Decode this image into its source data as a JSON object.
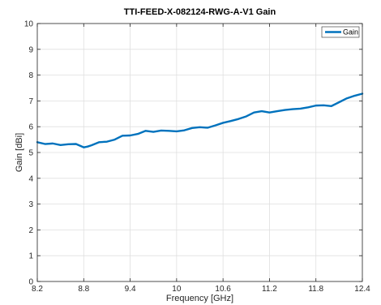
{
  "chart_data": {
    "type": "line",
    "title": "TTI-FEED-X-082124-RWG-A-V1 Gain",
    "xlabel": "Frequency [GHz]",
    "ylabel": "Gain [dBi]",
    "xlim": [
      8.2,
      12.4
    ],
    "ylim": [
      0,
      10
    ],
    "x_ticks": [
      "8.2",
      "8.8",
      "9.4",
      "10",
      "10.6",
      "11.2",
      "11.8",
      "12.4"
    ],
    "y_ticks": [
      "0",
      "1",
      "2",
      "3",
      "4",
      "5",
      "6",
      "7",
      "8",
      "9",
      "10"
    ],
    "grid": true,
    "legend_position": "top-right",
    "series": [
      {
        "name": "Gain",
        "color": "#0072BD",
        "x": [
          8.2,
          8.3,
          8.4,
          8.5,
          8.6,
          8.7,
          8.8,
          8.85,
          8.9,
          9.0,
          9.1,
          9.2,
          9.3,
          9.4,
          9.5,
          9.6,
          9.7,
          9.8,
          9.9,
          10.0,
          10.1,
          10.2,
          10.3,
          10.4,
          10.5,
          10.6,
          10.7,
          10.8,
          10.9,
          11.0,
          11.1,
          11.2,
          11.3,
          11.4,
          11.5,
          11.6,
          11.7,
          11.8,
          11.9,
          12.0,
          12.1,
          12.2,
          12.3,
          12.4
        ],
        "y": [
          5.4,
          5.33,
          5.35,
          5.29,
          5.32,
          5.33,
          5.2,
          5.23,
          5.28,
          5.4,
          5.42,
          5.5,
          5.65,
          5.66,
          5.72,
          5.84,
          5.8,
          5.85,
          5.84,
          5.82,
          5.86,
          5.95,
          5.98,
          5.96,
          6.05,
          6.15,
          6.22,
          6.3,
          6.4,
          6.55,
          6.6,
          6.55,
          6.6,
          6.65,
          6.68,
          6.7,
          6.75,
          6.82,
          6.83,
          6.8,
          6.95,
          7.1,
          7.2,
          7.28
        ]
      }
    ]
  }
}
